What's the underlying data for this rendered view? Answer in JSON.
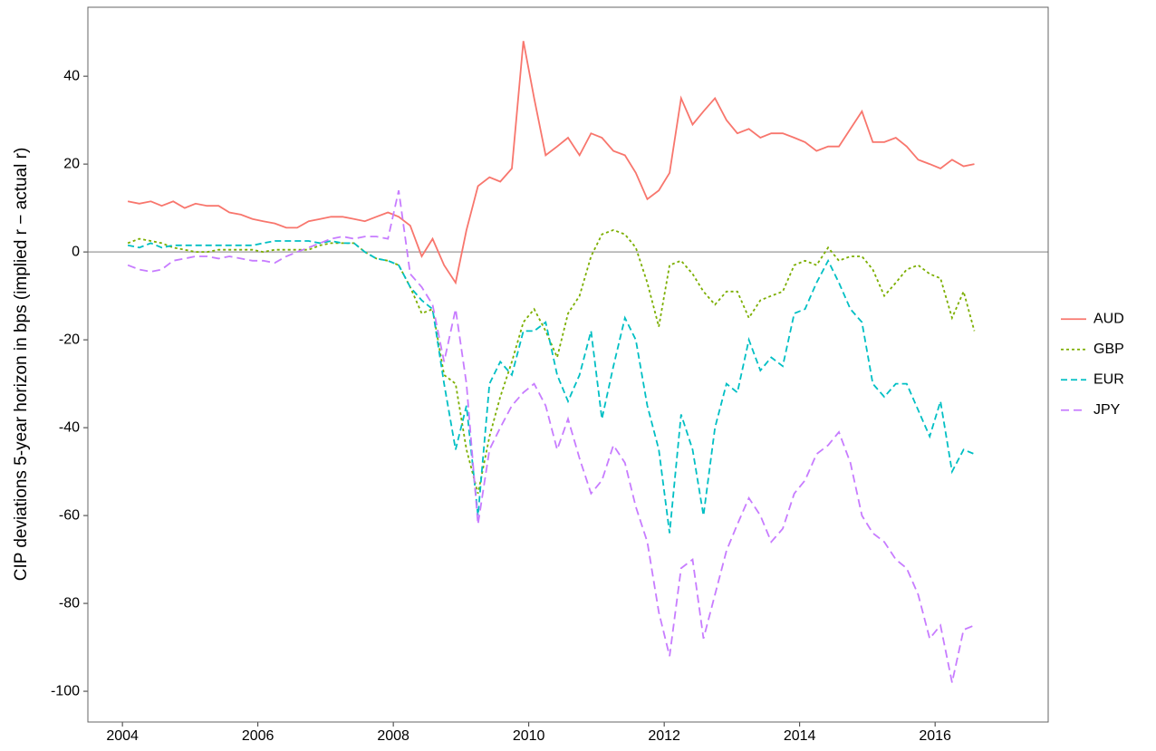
{
  "chart_data": {
    "type": "line",
    "y_label": "CIP deviations 5-year horizon in bps (implied r − actual r)",
    "x": [
      2004.08,
      2004.25,
      2004.42,
      2004.58,
      2004.75,
      2004.92,
      2005.08,
      2005.25,
      2005.42,
      2005.58,
      2005.75,
      2005.92,
      2006.08,
      2006.25,
      2006.42,
      2006.58,
      2006.75,
      2006.92,
      2007.08,
      2007.25,
      2007.42,
      2007.58,
      2007.75,
      2007.92,
      2008.08,
      2008.25,
      2008.42,
      2008.58,
      2008.75,
      2008.92,
      2009.08,
      2009.25,
      2009.42,
      2009.58,
      2009.75,
      2009.92,
      2010.08,
      2010.25,
      2010.42,
      2010.58,
      2010.75,
      2010.92,
      2011.08,
      2011.25,
      2011.42,
      2011.58,
      2011.75,
      2011.92,
      2012.08,
      2012.25,
      2012.42,
      2012.58,
      2012.75,
      2012.92,
      2013.08,
      2013.25,
      2013.42,
      2013.58,
      2013.75,
      2013.92,
      2014.08,
      2014.25,
      2014.42,
      2014.58,
      2014.75,
      2014.92,
      2015.08,
      2015.25,
      2015.42,
      2015.58,
      2015.75,
      2015.92,
      2016.08,
      2016.25,
      2016.42,
      2016.58
    ],
    "series": [
      {
        "name": "AUD",
        "color": "#F8766D",
        "linestyle": "solid",
        "values": [
          11.5,
          11,
          11.5,
          10.5,
          11.5,
          10,
          11,
          10.5,
          10.5,
          9,
          8.5,
          7.5,
          7,
          6.5,
          5.5,
          5.5,
          7,
          7.5,
          8,
          8,
          7.5,
          7,
          8,
          9,
          8,
          6,
          -1,
          3,
          -3,
          -7,
          5,
          15,
          17,
          16,
          19,
          48,
          35,
          22,
          24,
          26,
          22,
          27,
          26,
          23,
          22,
          18,
          12,
          14,
          18,
          35,
          29,
          32,
          35,
          30,
          27,
          28,
          26,
          27,
          27,
          26,
          25,
          23,
          24,
          24,
          28,
          32,
          25,
          25,
          26,
          24,
          21,
          20,
          19,
          21,
          19.5,
          20
        ]
      },
      {
        "name": "GBP",
        "color": "#7CAE00",
        "linestyle": "dotted",
        "values": [
          2,
          3,
          2.5,
          2,
          1,
          0.5,
          0,
          0,
          0.5,
          0.5,
          0.5,
          0.5,
          0,
          0.5,
          0.5,
          0.5,
          0.5,
          1.5,
          2,
          2,
          2,
          0,
          -1.5,
          -2,
          -3,
          -8,
          -14,
          -13,
          -28,
          -30,
          -45,
          -55,
          -42,
          -33,
          -25,
          -16,
          -13,
          -18,
          -24,
          -14,
          -10,
          -1,
          4,
          5,
          4,
          1,
          -7,
          -17,
          -3,
          -2,
          -5,
          -9,
          -12,
          -9,
          -9,
          -15,
          -11,
          -10,
          -9,
          -3,
          -2,
          -3,
          1,
          -2,
          -1,
          -1,
          -4,
          -10,
          -7,
          -4,
          -3,
          -5,
          -6,
          -15,
          -9,
          -18
        ]
      },
      {
        "name": "EUR",
        "color": "#00BFC4",
        "linestyle": "dashed",
        "values": [
          1.5,
          1,
          2,
          1,
          1.5,
          1.5,
          1.5,
          1.5,
          1.5,
          1.5,
          1.5,
          1.5,
          2,
          2.5,
          2.5,
          2.5,
          2.5,
          2,
          2.5,
          2,
          2,
          0,
          -1.5,
          -2,
          -3,
          -8,
          -11,
          -13,
          -30,
          -45,
          -35,
          -60,
          -30,
          -25,
          -28,
          -18,
          -18,
          -16,
          -28,
          -34,
          -28,
          -18,
          -38,
          -26,
          -15,
          -20,
          -35,
          -45,
          -64,
          -37,
          -45,
          -60,
          -40,
          -30,
          -32,
          -20,
          -27,
          -24,
          -26,
          -14,
          -13,
          -7,
          -2,
          -7,
          -13,
          -16,
          -30,
          -33,
          -30,
          -30,
          -36,
          -42,
          -34,
          -50,
          -45,
          -46
        ]
      },
      {
        "name": "JPY",
        "color": "#C77CFF",
        "linestyle": "longdash",
        "values": [
          -3,
          -4,
          -4.5,
          -4,
          -2,
          -1.5,
          -1,
          -1,
          -1.5,
          -1,
          -1.5,
          -2,
          -2,
          -2.5,
          -1,
          0,
          1,
          2,
          3,
          3.5,
          3,
          3.5,
          3.5,
          3,
          14,
          -5,
          -8,
          -12,
          -25,
          -13,
          -30,
          -62,
          -45,
          -40,
          -35,
          -32,
          -30,
          -35,
          -45,
          -38,
          -47,
          -55,
          -52,
          -44,
          -48,
          -58,
          -66,
          -82,
          -92,
          -72,
          -70,
          -88,
          -78,
          -68,
          -62,
          -56,
          -60,
          -66,
          -63,
          -55,
          -52,
          -46,
          -44,
          -41,
          -48,
          -60,
          -64,
          -66,
          -70,
          -72,
          -78,
          -88,
          -85,
          -98,
          -86,
          -85
        ]
      }
    ],
    "xlim": [
      2003.49,
      2017.67
    ],
    "xticks": [
      2004,
      2006,
      2008,
      2010,
      2012,
      2014,
      2016
    ],
    "ylim": [
      -107,
      55.7
    ],
    "yticks": [
      -100,
      -80,
      -60,
      -40,
      -20,
      0,
      20,
      40
    ],
    "reference_line": 0,
    "grid": false,
    "legend": "right"
  }
}
